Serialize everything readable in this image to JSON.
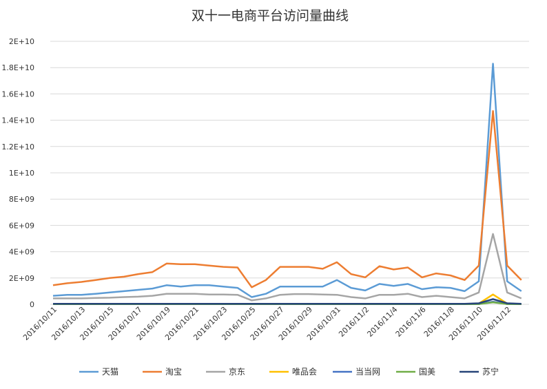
{
  "chart_data": {
    "type": "line",
    "title": "双十一电商平台访问量曲线",
    "xlabel": "",
    "ylabel": "",
    "ylim": [
      0,
      20000000000
    ],
    "y_ticks": [
      "0",
      "2E+09",
      "4E+09",
      "6E+09",
      "8E+09",
      "1E+10",
      "1.2E+10",
      "1.4E+10",
      "1.6E+10",
      "1.8E+10",
      "2E+10"
    ],
    "x_tick_labels": [
      "2016/10/11",
      "2016/10/13",
      "2016/10/15",
      "2016/10/17",
      "2016/10/19",
      "2016/10/21",
      "2016/10/23",
      "2016/10/25",
      "2016/10/27",
      "2016/10/29",
      "2016/10/31",
      "2016/11/2",
      "2016/11/4",
      "2016/11/6",
      "2016/11/8",
      "2016/11/10",
      "2016/11/12"
    ],
    "x": [
      "2016/10/11",
      "2016/10/12",
      "2016/10/13",
      "2016/10/14",
      "2016/10/15",
      "2016/10/16",
      "2016/10/17",
      "2016/10/18",
      "2016/10/19",
      "2016/10/20",
      "2016/10/21",
      "2016/10/22",
      "2016/10/23",
      "2016/10/24",
      "2016/10/25",
      "2016/10/26",
      "2016/10/27",
      "2016/10/28",
      "2016/10/29",
      "2016/10/30",
      "2016/10/31",
      "2016/11/1",
      "2016/11/2",
      "2016/11/3",
      "2016/11/4",
      "2016/11/5",
      "2016/11/6",
      "2016/11/7",
      "2016/11/8",
      "2016/11/9",
      "2016/11/10",
      "2016/11/11",
      "2016/11/12",
      "2016/11/13"
    ],
    "grid": true,
    "legend_position": "bottom",
    "series": [
      {
        "name": "天猫",
        "color": "#5b9bd5",
        "values": [
          650000000,
          720000000,
          720000000,
          800000000,
          900000000,
          1000000000,
          1100000000,
          1200000000,
          1450000000,
          1350000000,
          1450000000,
          1450000000,
          1350000000,
          1250000000,
          550000000,
          800000000,
          1350000000,
          1350000000,
          1350000000,
          1350000000,
          1850000000,
          1250000000,
          1050000000,
          1550000000,
          1400000000,
          1550000000,
          1150000000,
          1300000000,
          1250000000,
          1000000000,
          1750000000,
          18300000000,
          1750000000,
          1000000000
        ]
      },
      {
        "name": "淘宝",
        "color": "#ed7d31",
        "values": [
          1450000000,
          1600000000,
          1700000000,
          1850000000,
          2000000000,
          2100000000,
          2300000000,
          2450000000,
          3100000000,
          3050000000,
          3050000000,
          2950000000,
          2850000000,
          2800000000,
          1300000000,
          1850000000,
          2850000000,
          2850000000,
          2850000000,
          2700000000,
          3200000000,
          2300000000,
          2050000000,
          2900000000,
          2650000000,
          2800000000,
          2050000000,
          2350000000,
          2200000000,
          1850000000,
          2950000000,
          14700000000,
          2950000000,
          1850000000
        ]
      },
      {
        "name": "京东",
        "color": "#a5a5a5",
        "values": [
          450000000,
          450000000,
          450000000,
          480000000,
          500000000,
          550000000,
          580000000,
          650000000,
          800000000,
          800000000,
          800000000,
          750000000,
          750000000,
          720000000,
          300000000,
          450000000,
          720000000,
          780000000,
          780000000,
          750000000,
          720000000,
          550000000,
          450000000,
          720000000,
          720000000,
          800000000,
          550000000,
          650000000,
          550000000,
          450000000,
          900000000,
          5350000000,
          900000000,
          450000000
        ]
      },
      {
        "name": "唯品会",
        "color": "#ffc000",
        "values": [
          20000000,
          20000000,
          20000000,
          20000000,
          20000000,
          20000000,
          20000000,
          20000000,
          20000000,
          20000000,
          20000000,
          20000000,
          20000000,
          20000000,
          20000000,
          20000000,
          20000000,
          20000000,
          20000000,
          20000000,
          20000000,
          20000000,
          20000000,
          20000000,
          20000000,
          20000000,
          20000000,
          20000000,
          20000000,
          20000000,
          60000000,
          750000000,
          60000000,
          20000000
        ]
      },
      {
        "name": "当当网",
        "color": "#4472c4",
        "values": [
          10000000,
          10000000,
          10000000,
          10000000,
          10000000,
          10000000,
          10000000,
          10000000,
          10000000,
          10000000,
          10000000,
          10000000,
          10000000,
          10000000,
          10000000,
          10000000,
          10000000,
          10000000,
          10000000,
          10000000,
          10000000,
          10000000,
          10000000,
          10000000,
          10000000,
          10000000,
          10000000,
          10000000,
          10000000,
          10000000,
          20000000,
          200000000,
          20000000,
          10000000
        ]
      },
      {
        "name": "国美",
        "color": "#70ad47",
        "values": [
          10000000,
          10000000,
          10000000,
          10000000,
          10000000,
          10000000,
          10000000,
          10000000,
          10000000,
          10000000,
          10000000,
          10000000,
          10000000,
          10000000,
          10000000,
          10000000,
          10000000,
          10000000,
          10000000,
          10000000,
          10000000,
          10000000,
          10000000,
          10000000,
          10000000,
          10000000,
          10000000,
          10000000,
          10000000,
          10000000,
          20000000,
          150000000,
          20000000,
          10000000
        ]
      },
      {
        "name": "苏宁",
        "color": "#264478",
        "values": [
          40000000,
          40000000,
          40000000,
          40000000,
          40000000,
          40000000,
          40000000,
          40000000,
          40000000,
          40000000,
          40000000,
          40000000,
          40000000,
          40000000,
          40000000,
          40000000,
          40000000,
          40000000,
          40000000,
          40000000,
          40000000,
          40000000,
          40000000,
          40000000,
          40000000,
          40000000,
          40000000,
          40000000,
          40000000,
          40000000,
          80000000,
          400000000,
          80000000,
          40000000
        ]
      }
    ]
  }
}
